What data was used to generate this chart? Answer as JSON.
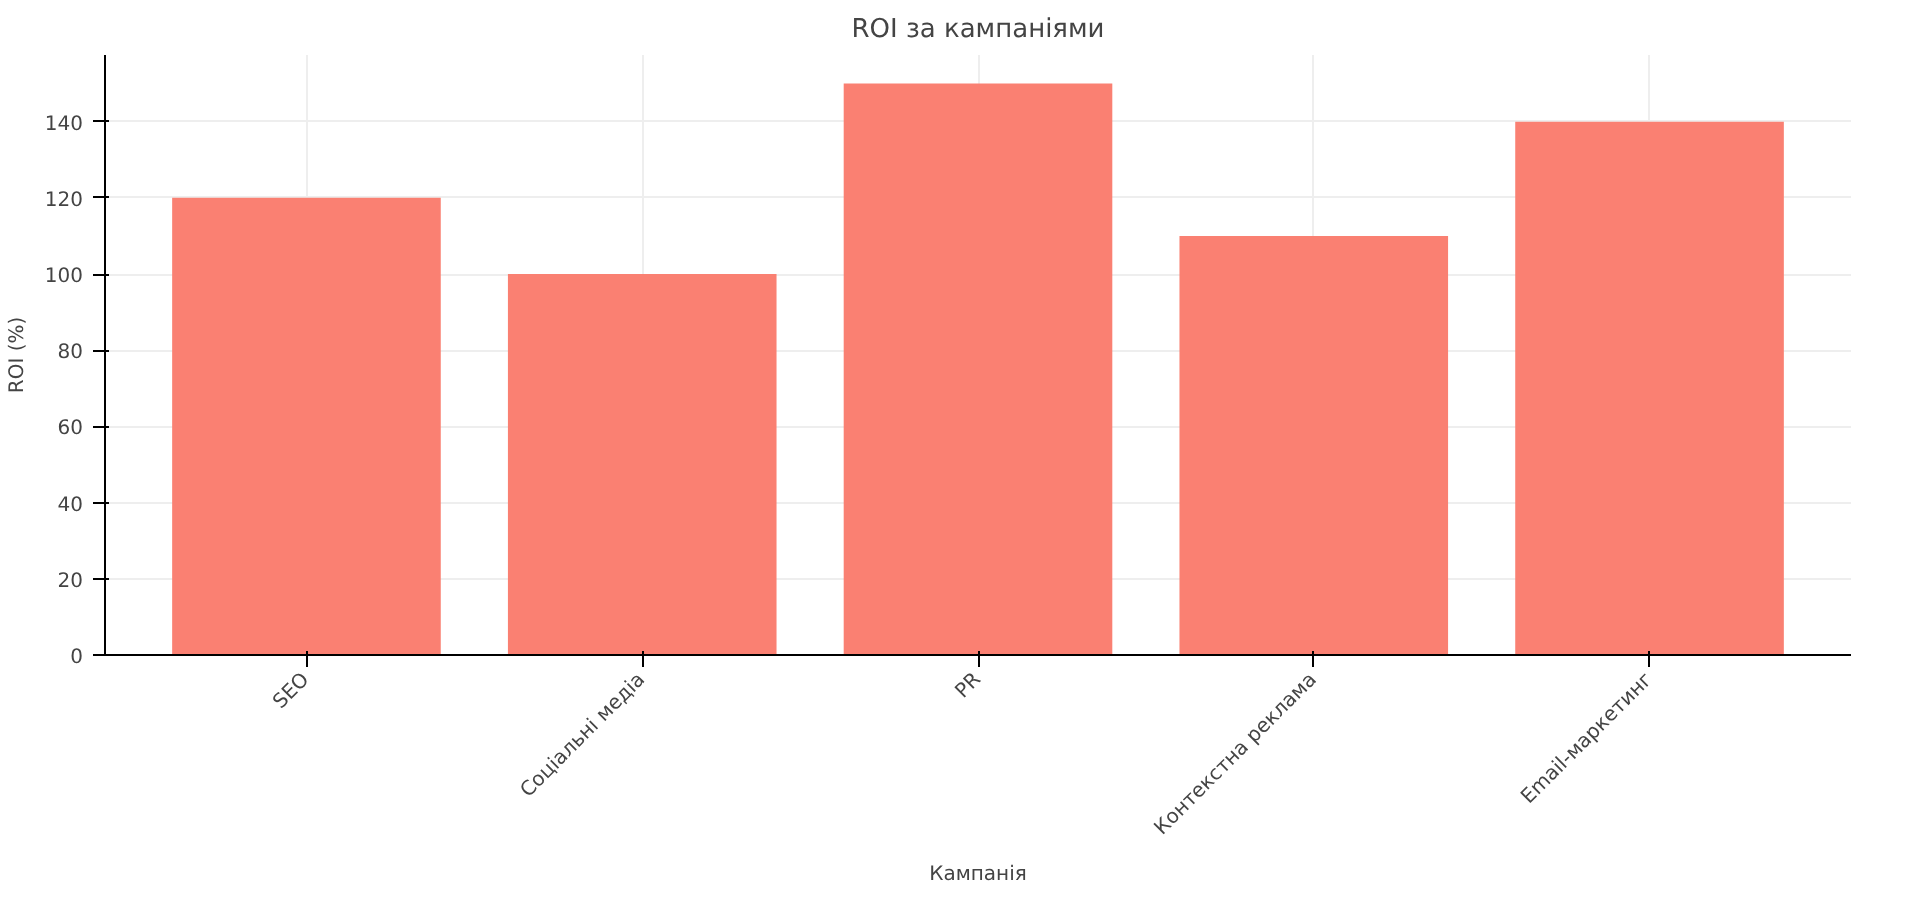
{
  "chart_data": {
    "type": "bar",
    "title": "ROI за кампаніями",
    "xlabel": "Кампанія",
    "ylabel": "ROI (%)",
    "categories": [
      "SEO",
      "Соціальні медіа",
      "PR",
      "Контекстна реклама",
      "Email-маркетинг"
    ],
    "values": [
      120,
      100,
      150,
      110,
      140
    ],
    "color": "#fa8072",
    "ylim": [
      0,
      157.5
    ],
    "yticks": [
      0,
      20,
      40,
      60,
      80,
      100,
      120,
      140
    ],
    "grid": true
  }
}
